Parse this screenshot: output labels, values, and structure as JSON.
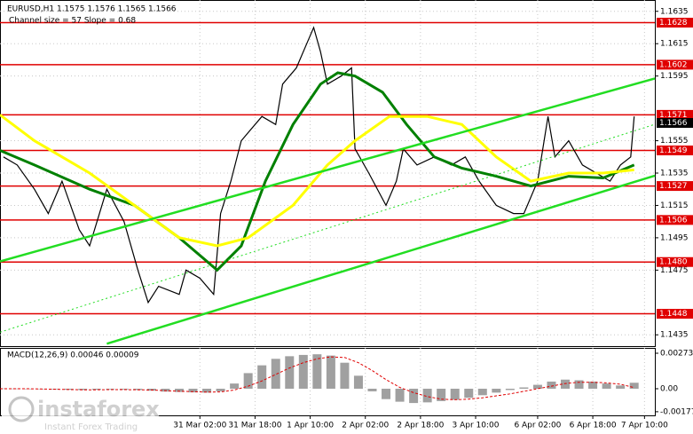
{
  "chart_data": [
    {
      "type": "line",
      "title": "EURUSD,H1  1.1575 1.1576 1.1565 1.1566",
      "subtitle": "Channel size = 57 Slope = 0.68",
      "xlim": [
        0,
        190
      ],
      "ylim": [
        1.1428,
        1.1642
      ],
      "grid": true,
      "xticks": [
        {
          "value": 58,
          "label": "31 Mar 02:00"
        },
        {
          "value": 74,
          "label": "31 Mar 18:00"
        },
        {
          "value": 90,
          "label": "1 Apr 10:00"
        },
        {
          "value": 106,
          "label": "2 Apr 02:00"
        },
        {
          "value": 122,
          "label": "2 Apr 18:00"
        },
        {
          "value": 138,
          "label": "3 Apr 10:00"
        },
        {
          "value": 156,
          "label": "6 Apr 02:00"
        },
        {
          "value": 172,
          "label": "6 Apr 18:00"
        },
        {
          "value": 187,
          "label": "7 Apr 10:00"
        }
      ],
      "yticks": [
        1.1635,
        1.1615,
        1.1595,
        1.1555,
        1.1535,
        1.1515,
        1.1495,
        {
          "value": 1.1475,
          "label": "1.1475"
        },
        1.1435
      ],
      "levels": [
        {
          "value": 1.1628,
          "color": "#e00000"
        },
        {
          "value": 1.1602,
          "color": "#e00000"
        },
        {
          "value": 1.1571,
          "color": "#e00000"
        },
        {
          "value": 1.1566,
          "color": "#000000"
        },
        {
          "value": 1.1549,
          "color": "#e00000"
        },
        {
          "value": 1.1527,
          "color": "#e00000"
        },
        {
          "value": 1.1506,
          "color": "#e00000"
        },
        {
          "value": 1.148,
          "label": "1.1480",
          "color": "#e00000"
        },
        {
          "value": 1.1448,
          "color": "#e00000"
        }
      ],
      "series": [
        {
          "color": "#000000",
          "width": 1.2,
          "x": [
            1,
            5,
            10,
            14,
            18,
            23,
            26,
            31,
            36,
            40,
            43,
            46,
            52,
            54,
            58,
            62,
            64,
            67,
            70,
            72,
            76,
            80,
            82,
            86,
            89,
            91,
            93,
            95,
            99,
            102,
            103,
            107,
            112,
            115,
            117,
            121,
            126,
            131,
            135,
            139,
            144,
            149,
            152,
            156,
            159,
            161,
            165,
            169,
            173,
            177,
            180,
            183,
            184
          ],
          "values": [
            1.1545,
            1.154,
            1.1525,
            1.151,
            1.153,
            1.15,
            1.149,
            1.1525,
            1.1505,
            1.1475,
            1.1455,
            1.1465,
            1.146,
            1.1475,
            1.147,
            1.146,
            1.151,
            1.153,
            1.1555,
            1.156,
            1.157,
            1.1565,
            1.159,
            1.16,
            1.1615,
            1.1625,
            1.161,
            1.159,
            1.1595,
            1.16,
            1.155,
            1.1535,
            1.1515,
            1.153,
            1.155,
            1.154,
            1.1545,
            1.154,
            1.1545,
            1.153,
            1.1515,
            1.151,
            1.151,
            1.153,
            1.157,
            1.1545,
            1.1555,
            1.154,
            1.1535,
            1.153,
            1.154,
            1.1545,
            1.157
          ]
        },
        {
          "color": "#008000",
          "width": 3,
          "x": [
            0,
            10,
            26,
            39,
            52,
            63,
            70,
            77,
            85,
            93,
            98,
            103,
            111,
            118,
            126,
            134,
            144,
            154,
            165,
            175,
            184
          ],
          "values": [
            1.1549,
            1.154,
            1.1525,
            1.1515,
            1.1495,
            1.1475,
            1.149,
            1.153,
            1.1565,
            1.159,
            1.1597,
            1.1595,
            1.1585,
            1.1565,
            1.1545,
            1.1538,
            1.1533,
            1.1527,
            1.1533,
            1.1532,
            1.154
          ]
        },
        {
          "color": "#ffff00",
          "width": 3,
          "x": [
            0,
            10,
            26,
            39,
            52,
            63,
            72,
            85,
            95,
            103,
            113,
            124,
            134,
            144,
            154,
            165,
            175,
            184
          ],
          "values": [
            1.1571,
            1.1555,
            1.1535,
            1.1515,
            1.1495,
            1.149,
            1.1495,
            1.1515,
            1.154,
            1.1555,
            1.157,
            1.157,
            1.1565,
            1.1545,
            1.153,
            1.1535,
            1.1535,
            1.1537
          ]
        },
        {
          "color": "#22dd22",
          "width": 2.5,
          "x": [
            0,
            190
          ],
          "values": [
            1.14804,
            1.15935
          ]
        },
        {
          "color": "#22dd22",
          "width": 2.5,
          "x": [
            31,
            190
          ],
          "values": [
            1.14295,
            1.15334
          ]
        },
        {
          "color": "#22dd22",
          "width": 1,
          "dash": true,
          "x": [
            0,
            190
          ],
          "values": [
            1.14366,
            1.15651
          ]
        }
      ]
    },
    {
      "type": "bar",
      "title": "MACD(12,26,9) 0.00046 0.00009",
      "xlim": [
        0,
        190
      ],
      "ylim": [
        -0.00205,
        0.00314
      ],
      "yticks": [
        0.00273,
        {
          "value": 0,
          "label": "0.00"
        },
        -0.00177
      ],
      "x": [
        0,
        4,
        8,
        12,
        16,
        20,
        24,
        28,
        32,
        36,
        40,
        44,
        48,
        52,
        56,
        60,
        64,
        68,
        72,
        76,
        80,
        84,
        88,
        92,
        96,
        100,
        104,
        108,
        112,
        116,
        120,
        124,
        128,
        132,
        136,
        140,
        144,
        148,
        152,
        156,
        160,
        164,
        168,
        172,
        176,
        180,
        184
      ],
      "series": [
        {
          "color": "#a0a0a0",
          "values": [
            2e-05,
            1e-05,
            0,
            -3e-05,
            -5e-05,
            -8e-05,
            -0.0001,
            -8e-05,
            -5e-05,
            -6e-05,
            -0.0001,
            -0.00015,
            -0.00022,
            -0.00025,
            -0.00028,
            -0.0003,
            -0.0002,
            0.0004,
            0.0012,
            0.0018,
            0.0023,
            0.0025,
            0.0026,
            0.00265,
            0.00255,
            0.002,
            0.001,
            -0.0002,
            -0.0008,
            -0.001,
            -0.0011,
            -0.00105,
            -0.00095,
            -0.00085,
            -0.0007,
            -0.0005,
            -0.0003,
            -0.0001,
            0.0001,
            0.0003,
            0.00055,
            0.0007,
            0.00065,
            0.00055,
            0.0004,
            0.00025,
            0.00046
          ]
        },
        {
          "color": "#e00000",
          "dash": true,
          "values": [
            0,
            0,
            0,
            -2e-05,
            -4e-05,
            -6e-05,
            -8e-05,
            -8e-05,
            -7e-05,
            -7e-05,
            -8e-05,
            -0.0001,
            -0.00015,
            -0.00019,
            -0.00023,
            -0.00026,
            -0.00025,
            -0.0001,
            0.0002,
            0.0006,
            0.0011,
            0.0016,
            0.002,
            0.0023,
            0.00245,
            0.0024,
            0.002,
            0.0014,
            0.0007,
            0.0001,
            -0.0003,
            -0.0006,
            -0.0008,
            -0.00085,
            -0.0008,
            -0.0007,
            -0.00055,
            -0.0004,
            -0.0002,
            0,
            0.0002,
            0.0004,
            0.0005,
            0.0005,
            0.00045,
            0.00035,
            9e-05
          ]
        }
      ]
    }
  ],
  "watermark": {
    "brand": "instaforex",
    "tagline": "Instant Forex Trading"
  }
}
